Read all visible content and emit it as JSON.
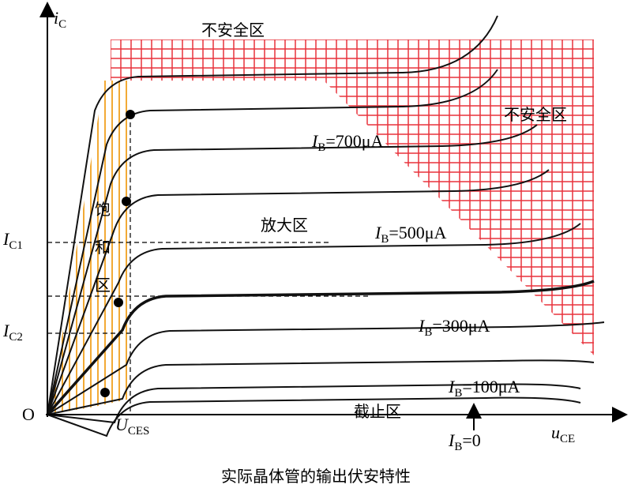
{
  "axes": {
    "y_label": {
      "main": "i",
      "sub": "C"
    },
    "x_label": {
      "main": "u",
      "sub": "CE"
    },
    "origin": "O"
  },
  "regions": {
    "unsafe_top": "不安全区",
    "unsafe_right": "不安全区",
    "saturation": [
      "饱",
      "和",
      "区"
    ],
    "amplification": "放大区",
    "cutoff": "截止区"
  },
  "curve_labels": [
    {
      "main": "I",
      "sub": "B",
      "rest": "=700μA"
    },
    {
      "main": "I",
      "sub": "B",
      "rest": "=500μA"
    },
    {
      "main": "I",
      "sub": "B",
      "rest": "=300μA"
    },
    {
      "main": "I",
      "sub": "B",
      "rest": "=100μA"
    },
    {
      "main": "I",
      "sub": "B",
      "rest": "=0"
    }
  ],
  "markers": {
    "ic1": {
      "main": "I",
      "sub": "C1"
    },
    "ic2": {
      "main": "I",
      "sub": "C2"
    },
    "uces": {
      "main": "U",
      "sub": "CES"
    }
  },
  "caption": "实际晶体管的输出伏安特性"
}
